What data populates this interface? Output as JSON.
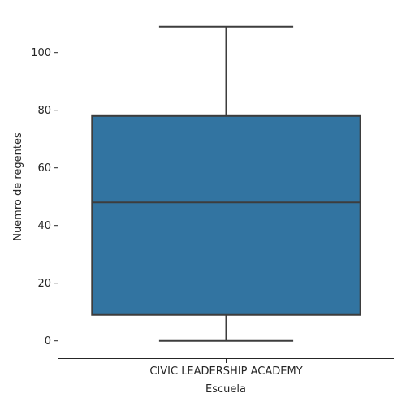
{
  "chart_data": {
    "type": "box",
    "xlabel": "Escuela",
    "ylabel": "Nuemro de regentes",
    "categories": [
      "CIVIC LEADERSHIP ACADEMY"
    ],
    "boxes": [
      {
        "category": "CIVIC LEADERSHIP ACADEMY",
        "min": 0,
        "q1": 9,
        "median": 48,
        "q3": 78,
        "max": 109
      }
    ],
    "y_ticks": [
      0,
      20,
      40,
      60,
      80,
      100
    ],
    "ylim": [
      -6,
      114
    ],
    "grid": false,
    "colors": {
      "box": "#3274a1",
      "line": "#3d3d3d",
      "axis": "#262626"
    }
  }
}
